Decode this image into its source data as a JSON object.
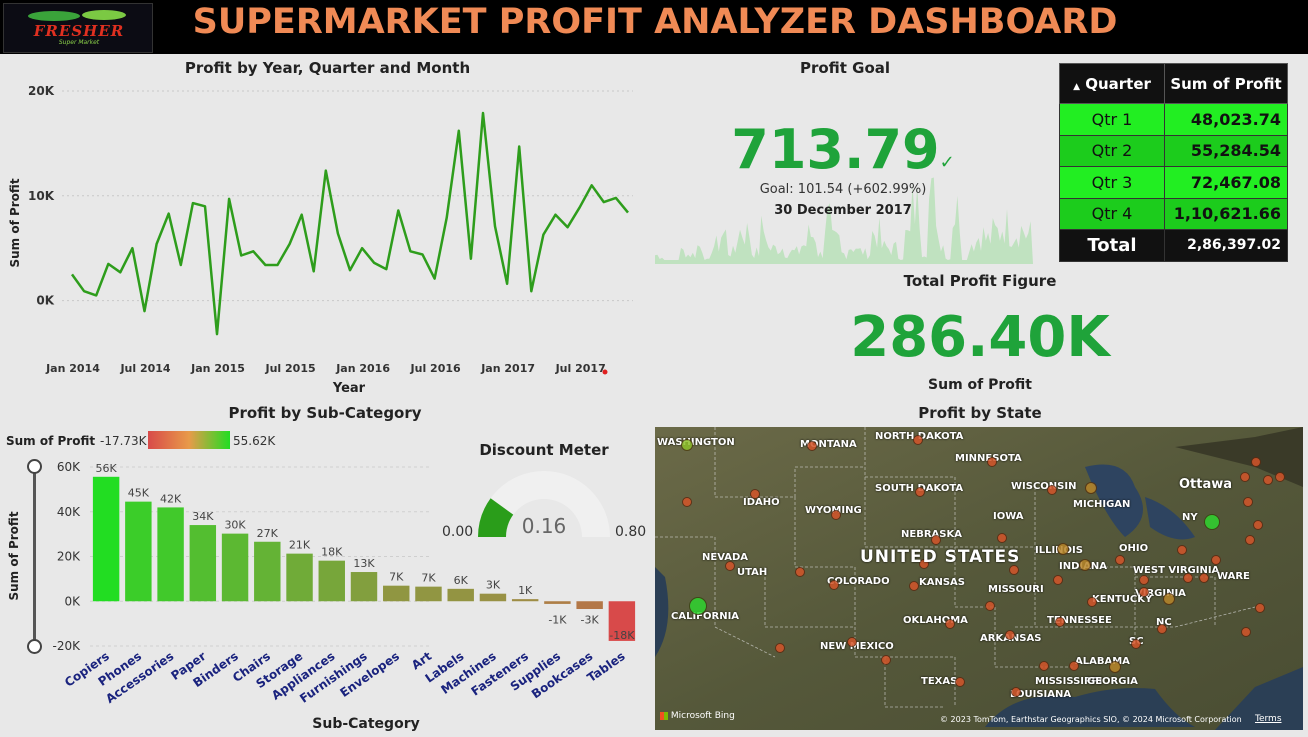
{
  "header": {
    "title": "SUPERMARKET PROFIT ANALYZER DASHBOARD",
    "logo_text": "FRESHER",
    "logo_sub": "Super Market"
  },
  "line_panel": {
    "title": "Profit by Year, Quarter and Month"
  },
  "kpi": {
    "title": "Profit Goal",
    "value": "713.79",
    "check": "✓",
    "goal_text": "Goal: 101.54 (+602.99%)",
    "date": "30 December 2017"
  },
  "total_profit": {
    "title": "Total Profit Figure",
    "value": "286.40K",
    "caption": "Sum of Profit"
  },
  "quarter_table": {
    "headers": [
      "Quarter",
      "Sum of Profit"
    ],
    "rows": [
      {
        "quarter": "Qtr 1",
        "value": "48,023.74",
        "color": "#22ee22"
      },
      {
        "quarter": "Qtr 2",
        "value": "55,284.54",
        "color": "#1ccc1c"
      },
      {
        "quarter": "Qtr 3",
        "value": "72,467.08",
        "color": "#22ee22"
      },
      {
        "quarter": "Qtr 4",
        "value": "1,10,621.66",
        "color": "#1ccc1c"
      }
    ],
    "total_label": "Total",
    "total_value": "2,86,397.02"
  },
  "bar_panel": {
    "title": "Profit by Sub-Category",
    "legend_label": "Sum of Profit",
    "legend_min": "-17.73K",
    "legend_max": "55.62K"
  },
  "gauge": {
    "title": "Discount Meter",
    "min": "0.00",
    "max": "0.80",
    "value_label": "0.16",
    "value": 0.16,
    "range": [
      0,
      0.8
    ]
  },
  "map_panel": {
    "title": "Profit by State",
    "country_label": "UNITED STATES",
    "attribution": "© 2023 TomTom, Earthstar Geographics SIO, © 2024 Microsoft Corporation",
    "terms": "Terms",
    "bing": "Microsoft Bing",
    "labels": [
      "NORTH DAKOTA",
      "MONTANA",
      "MINNESOTA",
      "WASHINGTON",
      "SOUTH DAKOTA",
      "WISCONSIN",
      "IDAHO",
      "WYOMING",
      "MICHIGAN",
      "Ottawa",
      "NEBRASKA",
      "IOWA",
      "NEVADA",
      "ILLINOIS",
      "OHIO",
      "NY",
      "INDIANA",
      "COLORADO",
      "KANSAS",
      "MISSOURI",
      "WEST VIRGINIA",
      "VIRGINIA",
      "KENTUCKY",
      "CALIFORNIA",
      "OKLAHOMA",
      "TENNESSEE",
      "NC",
      "NEW MEXICO",
      "ARKANSAS",
      "SC",
      "ALABAMA",
      "MISSISSIPPI",
      "GEORGIA",
      "TEXAS",
      "LOUISIANA",
      "UTAH",
      "WARE"
    ]
  },
  "chart_data": [
    {
      "type": "line",
      "title": "Profit by Year, Quarter and Month",
      "xlabel": "Year",
      "ylabel": "Sum of Profit",
      "ylim": [
        -5000,
        20000
      ],
      "yticks": [
        "20K",
        "10K",
        "0K"
      ],
      "xticks": [
        "Jan 2014",
        "Jul 2014",
        "Jan 2015",
        "Jul 2015",
        "Jan 2016",
        "Jul 2016",
        "Jan 2017",
        "Jul 2017"
      ],
      "color": "#2e9d1c",
      "series": [
        {
          "values": [
            2500,
            900,
            500,
            3500,
            2700,
            5000,
            -1000,
            5400,
            8300,
            3400,
            9300,
            9000,
            -3200,
            9700,
            4300,
            4700,
            3400,
            3400,
            5400,
            8200,
            2800,
            12400,
            6400,
            2900,
            5000,
            3600,
            3000,
            8600,
            4700,
            4400,
            2100,
            7900,
            16200,
            4000,
            17900,
            7100,
            1600,
            14700,
            900,
            6300,
            8200,
            7000,
            8900,
            11000,
            9400,
            9800,
            8400
          ]
        }
      ]
    },
    {
      "type": "bar",
      "title": "Profit by Sub-Category",
      "xlabel": "Sub-Category",
      "ylabel": "Sum of Profit",
      "ylim": [
        -20000,
        60000
      ],
      "yticks": [
        "60K",
        "40K",
        "20K",
        "0K",
        "-20K"
      ],
      "categories": [
        "Copiers",
        "Phones",
        "Accessories",
        "Paper",
        "Binders",
        "Chairs",
        "Storage",
        "Appliances",
        "Furnishings",
        "Envelopes",
        "Art",
        "Labels",
        "Machines",
        "Fasteners",
        "Supplies",
        "Bookcases",
        "Tables"
      ],
      "values": [
        55620,
        44520,
        41940,
        34050,
        30220,
        26590,
        21280,
        18140,
        13060,
        6960,
        6530,
        5550,
        3380,
        950,
        -1190,
        -3470,
        -17730
      ],
      "data_labels": [
        "56K",
        "45K",
        "42K",
        "34K",
        "30K",
        "27K",
        "21K",
        "18K",
        "13K",
        "7K",
        "7K",
        "6K",
        "3K",
        "1K",
        "-1K",
        "-3K",
        "-18K"
      ]
    }
  ]
}
